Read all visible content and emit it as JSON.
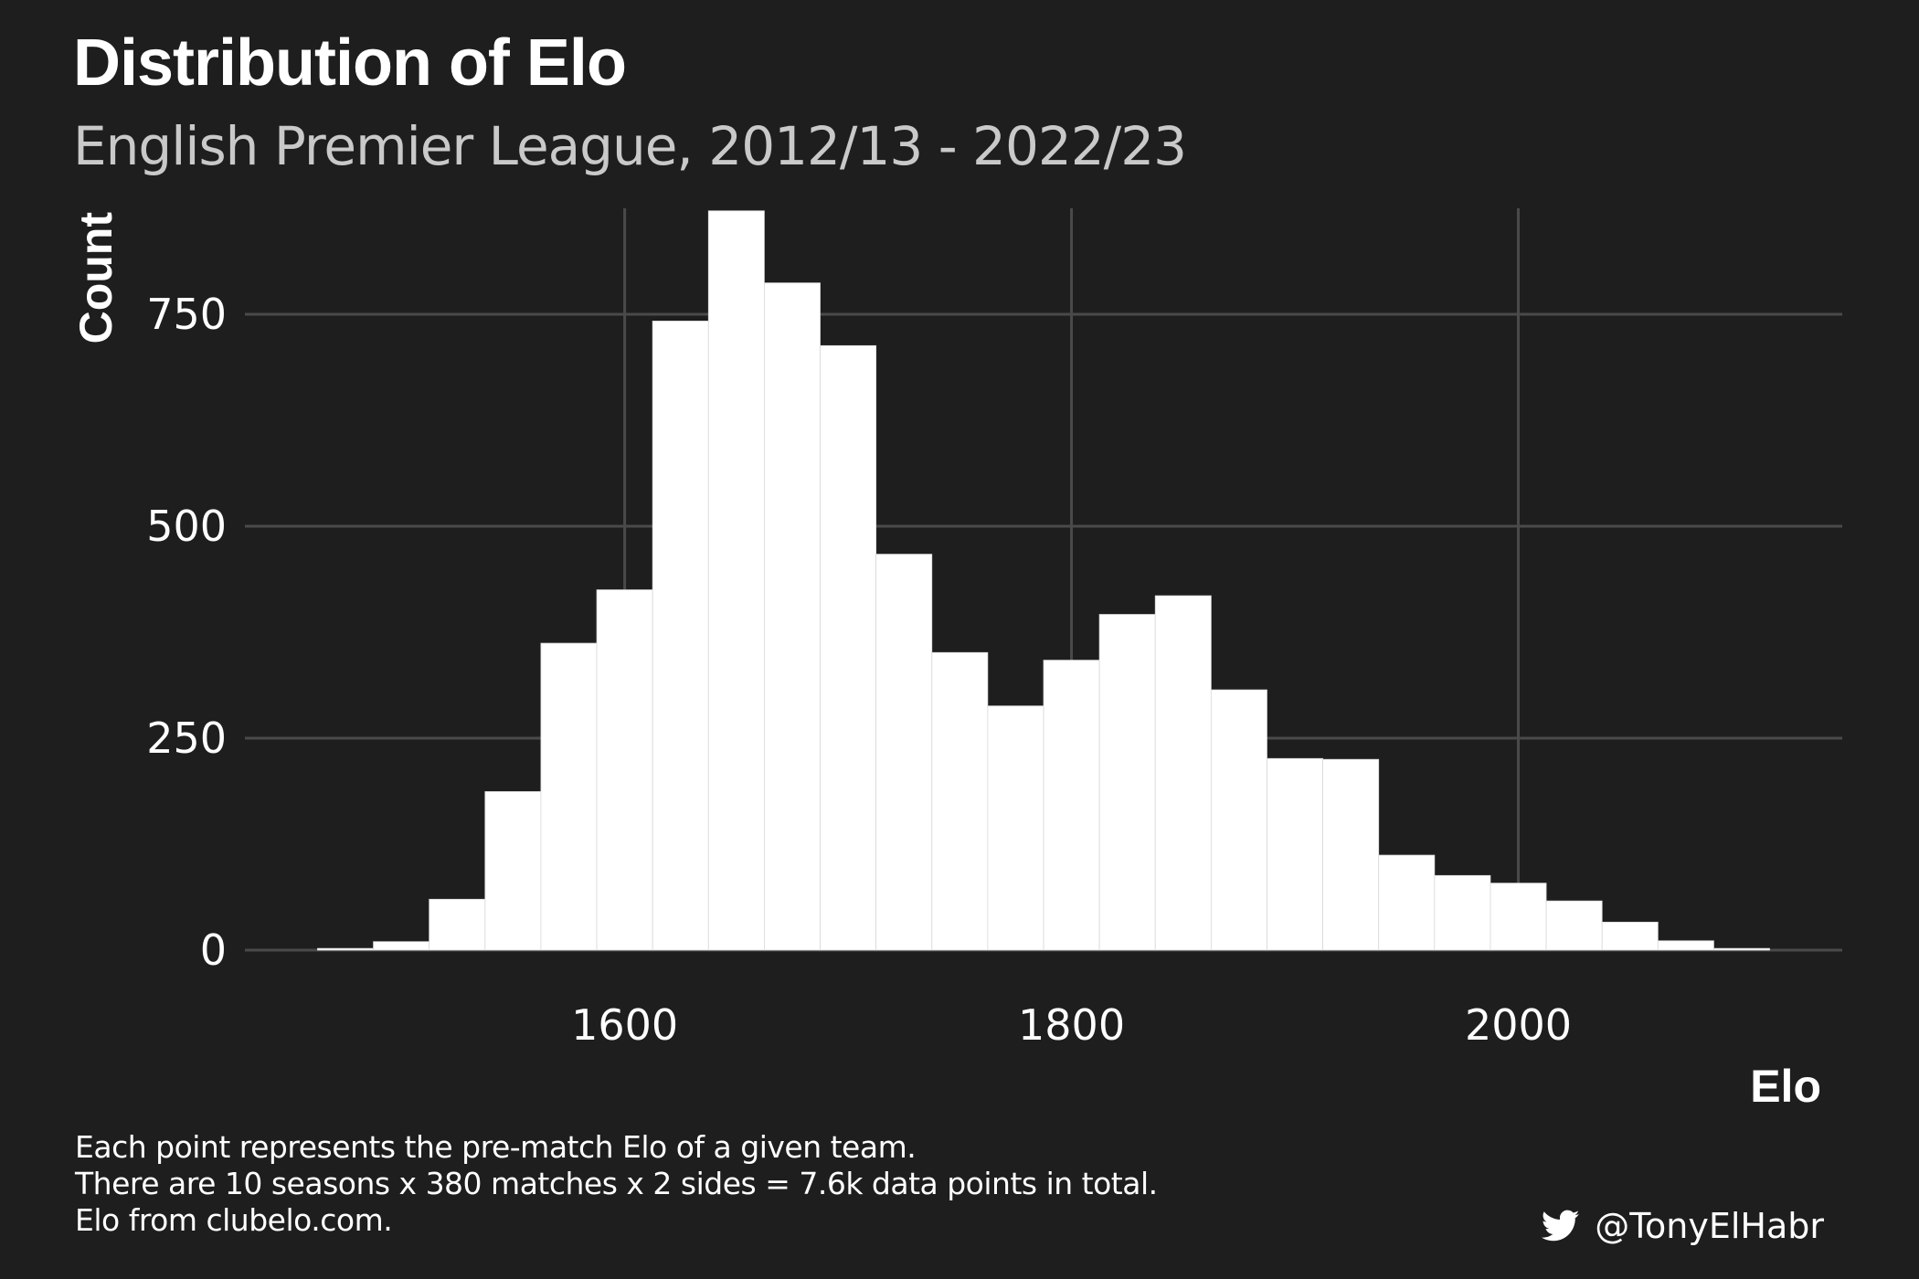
{
  "header": {
    "title": "Distribution of Elo",
    "subtitle": "English Premier League, 2012/13 - 2022/23"
  },
  "caption": {
    "lines": [
      "Each point represents the pre-match Elo of a given team.",
      "There are 10 seasons x 380 matches x 2 sides = 7.6k data points in total.",
      "Elo from clubelo.com."
    ],
    "handle": "@TonyElHabr",
    "handle_icon": "twitter-icon"
  },
  "colors": {
    "background": "#1e1e1e",
    "bar_fill": "#ffffff",
    "grid": "#4a4a4a",
    "text": "#ffffff",
    "subtitle": "#c9c9c9"
  },
  "chart_data": {
    "type": "bar",
    "title": "Distribution of Elo",
    "subtitle": "English Premier League, 2012/13 - 2022/23",
    "xlabel": "Elo",
    "ylabel": "Count",
    "xlim": [
      1430,
      2145
    ],
    "ylim": [
      0,
      875
    ],
    "xticks": [
      1600,
      1800,
      2000
    ],
    "yticks": [
      0,
      250,
      500,
      750
    ],
    "grid": true,
    "bin_width": 25,
    "bins": [
      {
        "x0": 1462.5,
        "x1": 1487.5,
        "count": 2
      },
      {
        "x0": 1487.5,
        "x1": 1512.5,
        "count": 10
      },
      {
        "x0": 1512.5,
        "x1": 1537.5,
        "count": 60
      },
      {
        "x0": 1537.5,
        "x1": 1562.5,
        "count": 187
      },
      {
        "x0": 1562.5,
        "x1": 1587.5,
        "count": 362
      },
      {
        "x0": 1587.5,
        "x1": 1612.5,
        "count": 425
      },
      {
        "x0": 1612.5,
        "x1": 1637.5,
        "count": 742
      },
      {
        "x0": 1637.5,
        "x1": 1662.5,
        "count": 872
      },
      {
        "x0": 1662.5,
        "x1": 1687.5,
        "count": 787
      },
      {
        "x0": 1687.5,
        "x1": 1712.5,
        "count": 713
      },
      {
        "x0": 1712.5,
        "x1": 1737.5,
        "count": 467
      },
      {
        "x0": 1737.5,
        "x1": 1762.5,
        "count": 351
      },
      {
        "x0": 1762.5,
        "x1": 1787.5,
        "count": 288
      },
      {
        "x0": 1787.5,
        "x1": 1812.5,
        "count": 342
      },
      {
        "x0": 1812.5,
        "x1": 1837.5,
        "count": 396
      },
      {
        "x0": 1837.5,
        "x1": 1862.5,
        "count": 418
      },
      {
        "x0": 1862.5,
        "x1": 1887.5,
        "count": 307
      },
      {
        "x0": 1887.5,
        "x1": 1912.5,
        "count": 226
      },
      {
        "x0": 1912.5,
        "x1": 1937.5,
        "count": 225
      },
      {
        "x0": 1937.5,
        "x1": 1962.5,
        "count": 112
      },
      {
        "x0": 1962.5,
        "x1": 1987.5,
        "count": 88
      },
      {
        "x0": 1987.5,
        "x1": 2012.5,
        "count": 79
      },
      {
        "x0": 2012.5,
        "x1": 2037.5,
        "count": 58
      },
      {
        "x0": 2037.5,
        "x1": 2062.5,
        "count": 33
      },
      {
        "x0": 2062.5,
        "x1": 2087.5,
        "count": 11
      },
      {
        "x0": 2087.5,
        "x1": 2112.5,
        "count": 2
      }
    ]
  }
}
